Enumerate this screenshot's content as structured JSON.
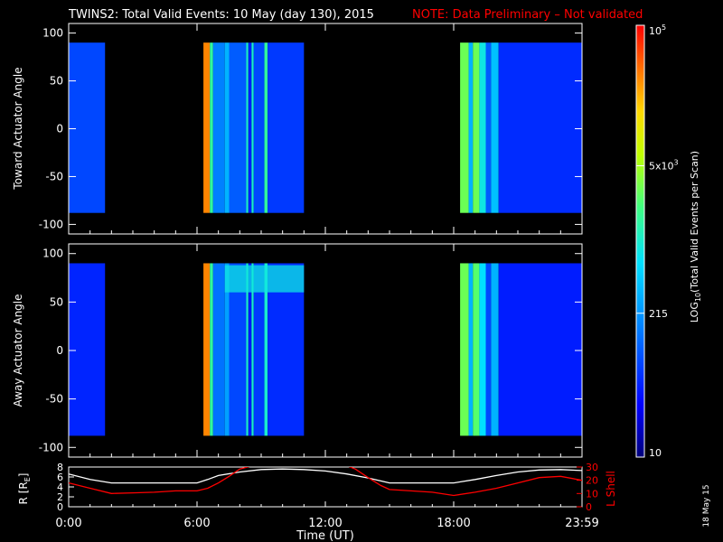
{
  "header": {
    "title": "TWINS2: Total Valid Events: 10 May (day 130), 2015",
    "note": "NOTE: Data Preliminary – Not validated"
  },
  "side_stamp": "18 May 15",
  "colors": {
    "note": "#ff0000",
    "background": "#000000",
    "axes": "#ffffff",
    "r_line": "#ffffff",
    "lshell_line": "#ff0000"
  },
  "chart_data": [
    {
      "type": "heatmap",
      "ylabel": "Toward Actuator Angle",
      "ylim": [
        -110,
        110
      ],
      "yticks": [
        100,
        50,
        0,
        -50,
        -100
      ],
      "xlim_hours": [
        0,
        24
      ],
      "data_y_range": [
        -88,
        90
      ],
      "coverage_hours": [
        [
          0.0,
          1.7
        ],
        [
          6.3,
          11.0
        ],
        [
          18.3,
          24.0
        ]
      ],
      "colormap": "rainbow, log scale",
      "bands": [
        {
          "t0": 0.0,
          "t1": 1.7,
          "level": 0.22
        },
        {
          "t0": 6.3,
          "t1": 6.6,
          "level": 0.88
        },
        {
          "t0": 6.6,
          "t1": 6.75,
          "level": 0.55
        },
        {
          "t0": 6.75,
          "t1": 7.3,
          "level": 0.3
        },
        {
          "t0": 7.3,
          "t1": 7.5,
          "level": 0.38
        },
        {
          "t0": 7.5,
          "t1": 8.3,
          "level": 0.25
        },
        {
          "t0": 8.3,
          "t1": 8.4,
          "level": 0.5
        },
        {
          "t0": 8.4,
          "t1": 8.55,
          "level": 0.16
        },
        {
          "t0": 8.55,
          "t1": 8.65,
          "level": 0.5
        },
        {
          "t0": 8.65,
          "t1": 9.15,
          "level": 0.22
        },
        {
          "t0": 9.15,
          "t1": 9.3,
          "level": 0.55
        },
        {
          "t0": 9.3,
          "t1": 11.0,
          "level": 0.2
        },
        {
          "t0": 18.3,
          "t1": 18.7,
          "level": 0.62
        },
        {
          "t0": 18.7,
          "t1": 18.9,
          "level": 0.38
        },
        {
          "t0": 18.9,
          "t1": 19.2,
          "level": 0.62
        },
        {
          "t0": 19.2,
          "t1": 19.5,
          "level": 0.48
        },
        {
          "t0": 19.5,
          "t1": 19.75,
          "level": 0.25
        },
        {
          "t0": 19.75,
          "t1": 20.1,
          "level": 0.4
        },
        {
          "t0": 20.1,
          "t1": 24.0,
          "level": 0.18
        }
      ]
    },
    {
      "type": "heatmap",
      "ylabel": "Away Actuator Angle",
      "ylim": [
        -110,
        110
      ],
      "yticks": [
        100,
        50,
        0,
        -50,
        -100
      ],
      "xlim_hours": [
        0,
        24
      ],
      "data_y_range": [
        -88,
        90
      ],
      "coverage_hours": [
        [
          0.0,
          1.7
        ],
        [
          6.3,
          11.0
        ],
        [
          18.3,
          24.0
        ]
      ],
      "colormap": "rainbow, log scale",
      "bands": [
        {
          "t0": 0.0,
          "t1": 1.7,
          "level": 0.17
        },
        {
          "t0": 6.3,
          "t1": 6.6,
          "level": 0.88
        },
        {
          "t0": 6.6,
          "t1": 6.75,
          "level": 0.55
        },
        {
          "t0": 6.75,
          "t1": 7.3,
          "level": 0.28
        },
        {
          "t0": 7.3,
          "t1": 7.5,
          "level": 0.35
        },
        {
          "t0": 7.5,
          "t1": 8.3,
          "level": 0.22
        },
        {
          "t0": 8.3,
          "t1": 8.4,
          "level": 0.5
        },
        {
          "t0": 8.4,
          "t1": 8.55,
          "level": 0.15
        },
        {
          "t0": 8.55,
          "t1": 8.65,
          "level": 0.5
        },
        {
          "t0": 8.65,
          "t1": 9.15,
          "level": 0.2
        },
        {
          "t0": 9.15,
          "t1": 9.3,
          "level": 0.5
        },
        {
          "t0": 9.3,
          "t1": 11.0,
          "level": 0.18
        },
        {
          "t0": 18.3,
          "t1": 18.7,
          "level": 0.62
        },
        {
          "t0": 18.7,
          "t1": 18.9,
          "level": 0.38
        },
        {
          "t0": 18.9,
          "t1": 19.2,
          "level": 0.6
        },
        {
          "t0": 19.2,
          "t1": 19.5,
          "level": 0.45
        },
        {
          "t0": 19.5,
          "t1": 19.75,
          "level": 0.22
        },
        {
          "t0": 19.75,
          "t1": 20.1,
          "level": 0.38
        },
        {
          "t0": 20.1,
          "t1": 24.0,
          "level": 0.16
        }
      ],
      "features": [
        {
          "name": "high-angle enhancement",
          "t0": 7.3,
          "t1": 11.0,
          "angle_range": [
            60,
            88
          ],
          "level": 0.48
        }
      ]
    },
    {
      "type": "line",
      "xlabel": "Time (UT)",
      "xticks_hours": [
        0,
        6,
        12,
        18,
        24
      ],
      "xtick_labels": [
        "0:00",
        "6:00",
        "12:00",
        "18:00",
        "23:59"
      ],
      "ylabel_left": "R [R",
      "ylabel_left_subscript": "E",
      "ylabel_left_close": "]",
      "ylim_left": [
        0,
        8
      ],
      "yticks_left": [
        8,
        6,
        4,
        2,
        0
      ],
      "ylabel_right": "L Shell",
      "ylim_right": [
        0,
        30
      ],
      "yticks_right": [
        30,
        20,
        10,
        0
      ],
      "series": [
        {
          "axis": "left",
          "x": [
            0,
            1,
            2,
            3,
            4,
            5,
            6,
            6.5,
            7,
            8,
            9,
            10,
            11,
            12,
            13,
            14,
            15,
            16,
            17,
            18,
            19,
            20,
            21,
            22,
            23,
            24
          ],
          "y": [
            6.6,
            5.5,
            4.8,
            4.8,
            4.8,
            4.8,
            4.8,
            5.5,
            6.3,
            7.0,
            7.5,
            7.6,
            7.5,
            7.2,
            6.6,
            5.8,
            4.8,
            4.8,
            4.8,
            4.8,
            5.5,
            6.3,
            7.0,
            7.4,
            7.5,
            7.3
          ]
        },
        {
          "axis": "right",
          "x": [
            0,
            1,
            2,
            3,
            4,
            5,
            6,
            6.5,
            7,
            7.5,
            8.0,
            8.6,
            13.0,
            13.4,
            14.0,
            14.6,
            15,
            16,
            17,
            18,
            19,
            20,
            21,
            22,
            23,
            24
          ],
          "y": [
            18,
            14,
            10,
            10.5,
            11,
            12,
            12,
            14,
            18,
            23,
            28.5,
            31,
            31,
            28.5,
            22,
            16,
            13,
            12,
            11,
            8.5,
            11,
            14,
            18,
            22,
            23,
            20
          ]
        }
      ]
    }
  ],
  "colorbar": {
    "scale": "log",
    "range": [
      10,
      100000
    ],
    "title_prefix": "LOG",
    "title_subscript": "10",
    "title_rest": "(Total Valid Events per Scan)",
    "ticks": [
      {
        "value": 100000,
        "base": "10",
        "sup": "5",
        "prefix": ""
      },
      {
        "value": 5000,
        "base": "10",
        "sup": "3",
        "prefix": "5x"
      },
      {
        "value": 215,
        "base": "215",
        "sup": "",
        "prefix": ""
      },
      {
        "value": 10,
        "base": "10",
        "sup": "",
        "prefix": ""
      }
    ]
  }
}
